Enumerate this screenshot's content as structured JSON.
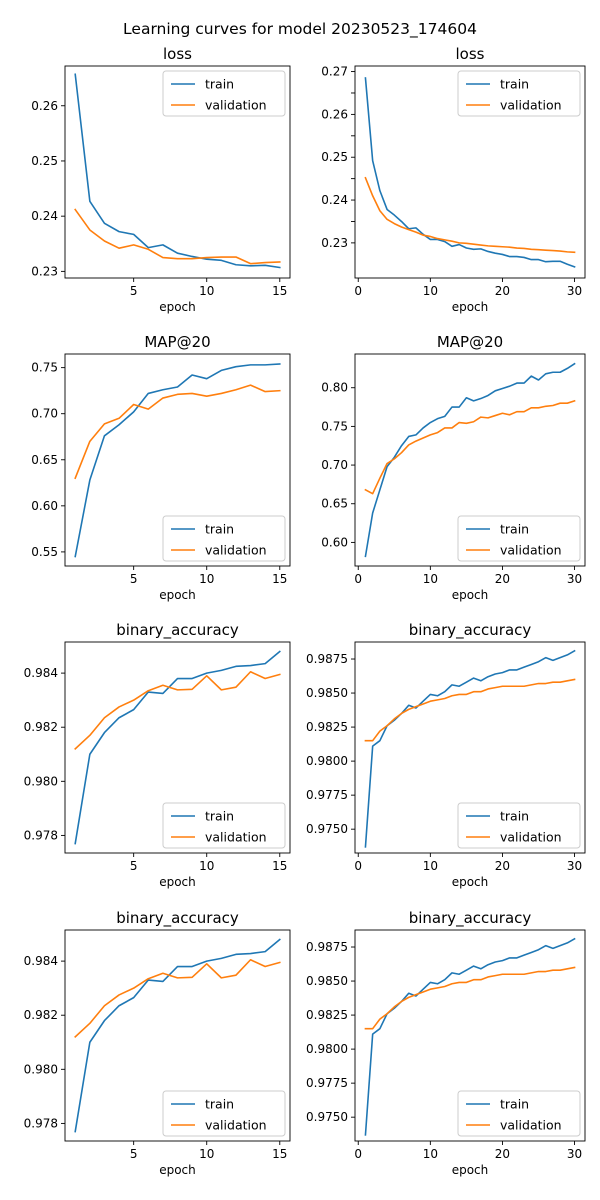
{
  "figure": {
    "suptitle": "Learning curves for model 20230523_174604"
  },
  "colors": {
    "train": "#1f77b4",
    "validation": "#ff7f0e"
  },
  "chart_data": [
    {
      "type": "line",
      "title": "loss",
      "xlabel": "epoch",
      "ylabel": "",
      "xlim": [
        0.3,
        15.7
      ],
      "ylim": [
        0.2288,
        0.2672
      ],
      "xticks": [
        5,
        10,
        15
      ],
      "yticks": [
        0.23,
        0.24,
        0.25,
        0.26
      ],
      "ytick_labels": [
        "0.23",
        "0.24",
        "0.25",
        "0.26"
      ],
      "legend": "top-right",
      "grid": false,
      "x": [
        1,
        2,
        3,
        4,
        5,
        6,
        7,
        8,
        9,
        10,
        11,
        12,
        13,
        14,
        15
      ],
      "series": [
        {
          "name": "train",
          "color": "#1f77b4",
          "values": [
            0.2657,
            0.2427,
            0.2387,
            0.2372,
            0.2367,
            0.2343,
            0.2348,
            0.2333,
            0.2327,
            0.2322,
            0.232,
            0.2312,
            0.231,
            0.2311,
            0.2307
          ]
        },
        {
          "name": "validation",
          "color": "#ff7f0e",
          "values": [
            0.2412,
            0.2375,
            0.2355,
            0.2342,
            0.2348,
            0.234,
            0.2325,
            0.2323,
            0.2323,
            0.2325,
            0.2326,
            0.2326,
            0.2314,
            0.2316,
            0.2317
          ]
        }
      ]
    },
    {
      "type": "line",
      "title": "loss",
      "xlabel": "epoch",
      "ylabel": "",
      "xlim": [
        -0.45,
        31.45
      ],
      "ylim": [
        0.2218,
        0.2713
      ],
      "xticks": [
        0,
        10,
        20,
        30
      ],
      "yticks": [
        0.23,
        0.235,
        0.24,
        0.245,
        0.25,
        0.255,
        0.26,
        0.265,
        0.27
      ],
      "ytick_labels": [
        "0.23",
        "",
        "0.24",
        "",
        "0.25",
        "",
        "0.26",
        "",
        "0.27"
      ],
      "legend": "top-right",
      "grid": false,
      "x": [
        1,
        2,
        3,
        4,
        5,
        6,
        7,
        8,
        9,
        10,
        11,
        12,
        13,
        14,
        15,
        16,
        17,
        18,
        19,
        20,
        21,
        22,
        23,
        24,
        25,
        26,
        27,
        28,
        29,
        30
      ],
      "series": [
        {
          "name": "train",
          "color": "#1f77b4",
          "values": [
            0.2685,
            0.2492,
            0.2422,
            0.2378,
            0.2365,
            0.235,
            0.2333,
            0.2335,
            0.232,
            0.2308,
            0.2308,
            0.2303,
            0.2292,
            0.2296,
            0.2288,
            0.2285,
            0.2286,
            0.228,
            0.2276,
            0.2273,
            0.2268,
            0.2268,
            0.2266,
            0.2261,
            0.2261,
            0.2256,
            0.2257,
            0.2257,
            0.225,
            0.2244
          ]
        },
        {
          "name": "validation",
          "color": "#ff7f0e",
          "values": [
            0.2452,
            0.241,
            0.2375,
            0.2355,
            0.2345,
            0.2337,
            0.2331,
            0.2325,
            0.2318,
            0.2315,
            0.231,
            0.2307,
            0.2304,
            0.23,
            0.2299,
            0.2297,
            0.2295,
            0.2293,
            0.2292,
            0.2291,
            0.229,
            0.2288,
            0.2287,
            0.2285,
            0.2284,
            0.2283,
            0.2282,
            0.2281,
            0.2279,
            0.2278
          ]
        }
      ]
    },
    {
      "type": "line",
      "title": "MAP@20",
      "xlabel": "epoch",
      "ylabel": "",
      "xlim": [
        0.3,
        15.7
      ],
      "ylim": [
        0.5347,
        0.7648
      ],
      "xticks": [
        5,
        10,
        15
      ],
      "yticks": [
        0.55,
        0.6,
        0.65,
        0.7,
        0.75
      ],
      "ytick_labels": [
        "0.55",
        "0.60",
        "0.65",
        "0.70",
        "0.75"
      ],
      "legend": "bottom-right",
      "grid": false,
      "x": [
        1,
        2,
        3,
        4,
        5,
        6,
        7,
        8,
        9,
        10,
        11,
        12,
        13,
        14,
        15
      ],
      "series": [
        {
          "name": "train",
          "color": "#1f77b4",
          "values": [
            0.545,
            0.628,
            0.676,
            0.688,
            0.702,
            0.722,
            0.726,
            0.729,
            0.742,
            0.738,
            0.747,
            0.751,
            0.753,
            0.753,
            0.754
          ]
        },
        {
          "name": "validation",
          "color": "#ff7f0e",
          "values": [
            0.63,
            0.67,
            0.689,
            0.695,
            0.71,
            0.705,
            0.717,
            0.721,
            0.722,
            0.719,
            0.722,
            0.726,
            0.731,
            0.724,
            0.725
          ]
        }
      ]
    },
    {
      "type": "line",
      "title": "MAP@20",
      "xlabel": "epoch",
      "ylabel": "",
      "xlim": [
        -0.45,
        31.45
      ],
      "ylim": [
        0.5695,
        0.8436
      ],
      "xticks": [
        0,
        10,
        20,
        30
      ],
      "yticks": [
        0.6,
        0.65,
        0.7,
        0.75,
        0.8
      ],
      "ytick_labels": [
        "0.60",
        "0.65",
        "0.70",
        "0.75",
        "0.80"
      ],
      "legend": "bottom-right",
      "grid": false,
      "x": [
        1,
        2,
        3,
        4,
        5,
        6,
        7,
        8,
        9,
        10,
        11,
        12,
        13,
        14,
        15,
        16,
        17,
        18,
        19,
        20,
        21,
        22,
        23,
        24,
        25,
        26,
        27,
        28,
        29,
        30
      ],
      "series": [
        {
          "name": "train",
          "color": "#1f77b4",
          "values": [
            0.582,
            0.638,
            0.668,
            0.698,
            0.71,
            0.725,
            0.737,
            0.739,
            0.748,
            0.755,
            0.76,
            0.763,
            0.775,
            0.775,
            0.787,
            0.783,
            0.786,
            0.79,
            0.796,
            0.799,
            0.802,
            0.806,
            0.806,
            0.815,
            0.81,
            0.818,
            0.82,
            0.82,
            0.825,
            0.831
          ]
        },
        {
          "name": "validation",
          "color": "#ff7f0e",
          "values": [
            0.668,
            0.663,
            0.683,
            0.702,
            0.708,
            0.716,
            0.726,
            0.731,
            0.735,
            0.739,
            0.742,
            0.748,
            0.748,
            0.755,
            0.754,
            0.756,
            0.762,
            0.761,
            0.764,
            0.767,
            0.765,
            0.769,
            0.769,
            0.774,
            0.774,
            0.776,
            0.777,
            0.78,
            0.78,
            0.783
          ]
        }
      ]
    },
    {
      "type": "line",
      "title": "binary_accuracy",
      "xlabel": "epoch",
      "ylabel": "",
      "xlim": [
        0.3,
        15.7
      ],
      "ylim": [
        0.97735,
        0.98515
      ],
      "xticks": [
        5,
        10,
        15
      ],
      "yticks": [
        0.978,
        0.98,
        0.982,
        0.984
      ],
      "ytick_labels": [
        "0.978",
        "0.980",
        "0.982",
        "0.984"
      ],
      "legend": "bottom-right",
      "grid": false,
      "x": [
        1,
        2,
        3,
        4,
        5,
        6,
        7,
        8,
        9,
        10,
        11,
        12,
        13,
        14,
        15
      ],
      "series": [
        {
          "name": "train",
          "color": "#1f77b4",
          "values": [
            0.9777,
            0.981,
            0.9818,
            0.98235,
            0.98265,
            0.9833,
            0.98325,
            0.9838,
            0.9838,
            0.984,
            0.9841,
            0.98425,
            0.98428,
            0.98435,
            0.9848
          ]
        },
        {
          "name": "validation",
          "color": "#ff7f0e",
          "values": [
            0.9812,
            0.9817,
            0.98235,
            0.98275,
            0.983,
            0.98335,
            0.98355,
            0.98338,
            0.9834,
            0.9839,
            0.98338,
            0.98348,
            0.98405,
            0.9838,
            0.98395
          ]
        }
      ]
    },
    {
      "type": "line",
      "title": "binary_accuracy",
      "xlabel": "epoch",
      "ylabel": "",
      "xlim": [
        -0.45,
        31.45
      ],
      "ylim": [
        0.97325,
        0.98875
      ],
      "xticks": [
        0,
        10,
        20,
        30
      ],
      "yticks": [
        0.975,
        0.9775,
        0.98,
        0.9825,
        0.985,
        0.9875
      ],
      "ytick_labels": [
        "0.9750",
        "0.9775",
        "0.9800",
        "0.9825",
        "0.9850",
        "0.9875"
      ],
      "legend": "bottom-right",
      "grid": false,
      "x": [
        1,
        2,
        3,
        4,
        5,
        6,
        7,
        8,
        9,
        10,
        11,
        12,
        13,
        14,
        15,
        16,
        17,
        18,
        19,
        20,
        21,
        22,
        23,
        24,
        25,
        26,
        27,
        28,
        29,
        30
      ],
      "series": [
        {
          "name": "train",
          "color": "#1f77b4",
          "values": [
            0.9737,
            0.9811,
            0.9815,
            0.9826,
            0.983,
            0.9835,
            0.9841,
            0.9839,
            0.9844,
            0.9849,
            0.9848,
            0.9851,
            0.9856,
            0.9855,
            0.9858,
            0.9861,
            0.9859,
            0.9862,
            0.9864,
            0.9865,
            0.9867,
            0.9867,
            0.9869,
            0.9871,
            0.9873,
            0.9876,
            0.9874,
            0.9876,
            0.9878,
            0.9881
          ]
        },
        {
          "name": "validation",
          "color": "#ff7f0e",
          "values": [
            0.9815,
            0.9815,
            0.9822,
            0.9826,
            0.9831,
            0.9835,
            0.9838,
            0.984,
            0.9842,
            0.9844,
            0.9845,
            0.9846,
            0.9848,
            0.9849,
            0.9849,
            0.9851,
            0.9851,
            0.9853,
            0.9854,
            0.9855,
            0.9855,
            0.9855,
            0.9855,
            0.9856,
            0.9857,
            0.9857,
            0.9858,
            0.9858,
            0.9859,
            0.986
          ]
        }
      ]
    },
    {
      "type": "line",
      "title": "binary_accuracy",
      "xlabel": "epoch",
      "ylabel": "",
      "xlim": [
        0.3,
        15.7
      ],
      "ylim": [
        0.97735,
        0.98515
      ],
      "xticks": [
        5,
        10,
        15
      ],
      "yticks": [
        0.978,
        0.98,
        0.982,
        0.984
      ],
      "ytick_labels": [
        "0.978",
        "0.980",
        "0.982",
        "0.984"
      ],
      "legend": "bottom-right",
      "grid": false,
      "x": [
        1,
        2,
        3,
        4,
        5,
        6,
        7,
        8,
        9,
        10,
        11,
        12,
        13,
        14,
        15
      ],
      "series": [
        {
          "name": "train",
          "color": "#1f77b4",
          "values": [
            0.9777,
            0.981,
            0.9818,
            0.98235,
            0.98265,
            0.9833,
            0.98325,
            0.9838,
            0.9838,
            0.984,
            0.9841,
            0.98425,
            0.98428,
            0.98435,
            0.9848
          ]
        },
        {
          "name": "validation",
          "color": "#ff7f0e",
          "values": [
            0.9812,
            0.9817,
            0.98235,
            0.98275,
            0.983,
            0.98335,
            0.98355,
            0.98338,
            0.9834,
            0.9839,
            0.98338,
            0.98348,
            0.98405,
            0.9838,
            0.98395
          ]
        }
      ]
    },
    {
      "type": "line",
      "title": "binary_accuracy",
      "xlabel": "epoch",
      "ylabel": "",
      "xlim": [
        -0.45,
        31.45
      ],
      "ylim": [
        0.97325,
        0.98875
      ],
      "xticks": [
        0,
        10,
        20,
        30
      ],
      "yticks": [
        0.975,
        0.9775,
        0.98,
        0.9825,
        0.985,
        0.9875
      ],
      "ytick_labels": [
        "0.9750",
        "0.9775",
        "0.9800",
        "0.9825",
        "0.9850",
        "0.9875"
      ],
      "legend": "bottom-right",
      "grid": false,
      "x": [
        1,
        2,
        3,
        4,
        5,
        6,
        7,
        8,
        9,
        10,
        11,
        12,
        13,
        14,
        15,
        16,
        17,
        18,
        19,
        20,
        21,
        22,
        23,
        24,
        25,
        26,
        27,
        28,
        29,
        30
      ],
      "series": [
        {
          "name": "train",
          "color": "#1f77b4",
          "values": [
            0.9737,
            0.9811,
            0.9815,
            0.9826,
            0.983,
            0.9835,
            0.9841,
            0.9839,
            0.9844,
            0.9849,
            0.9848,
            0.9851,
            0.9856,
            0.9855,
            0.9858,
            0.9861,
            0.9859,
            0.9862,
            0.9864,
            0.9865,
            0.9867,
            0.9867,
            0.9869,
            0.9871,
            0.9873,
            0.9876,
            0.9874,
            0.9876,
            0.9878,
            0.9881
          ]
        },
        {
          "name": "validation",
          "color": "#ff7f0e",
          "values": [
            0.9815,
            0.9815,
            0.9822,
            0.9826,
            0.9831,
            0.9835,
            0.9838,
            0.984,
            0.9842,
            0.9844,
            0.9845,
            0.9846,
            0.9848,
            0.9849,
            0.9849,
            0.9851,
            0.9851,
            0.9853,
            0.9854,
            0.9855,
            0.9855,
            0.9855,
            0.9855,
            0.9856,
            0.9857,
            0.9857,
            0.9858,
            0.9858,
            0.9859,
            0.986
          ]
        }
      ]
    }
  ]
}
